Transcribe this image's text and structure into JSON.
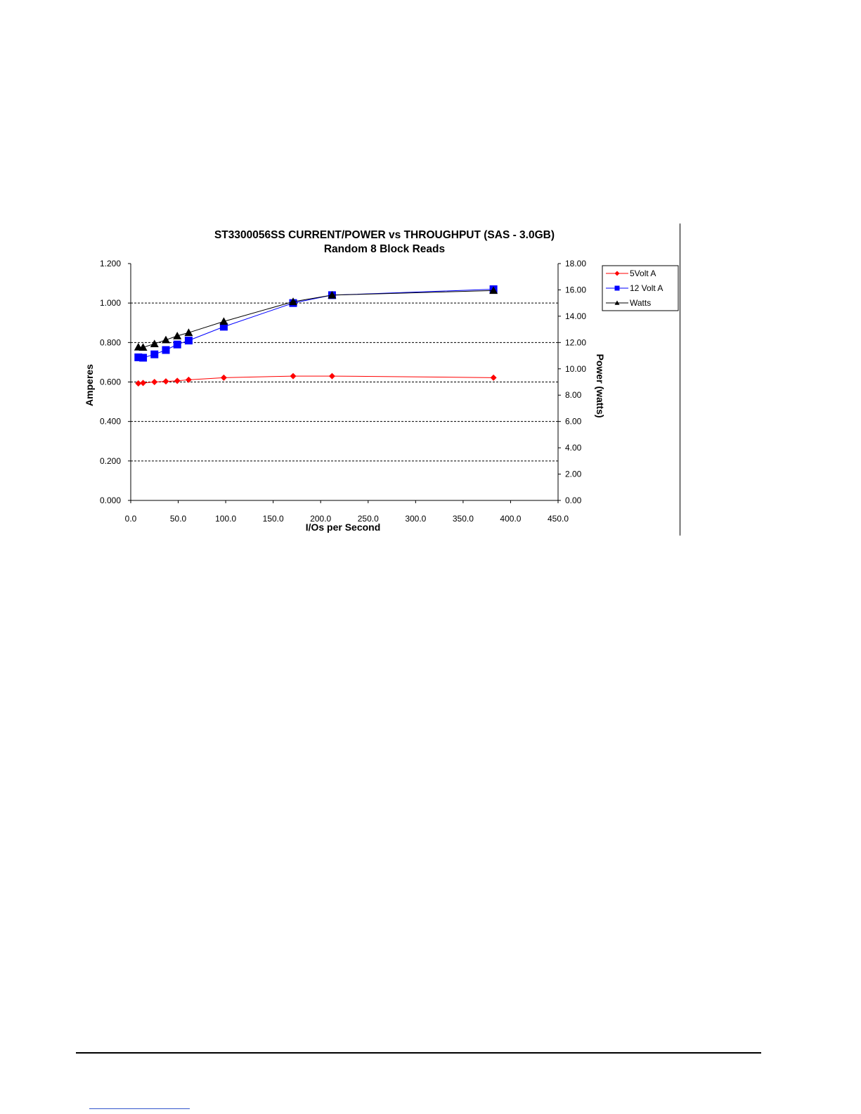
{
  "chart_data": {
    "type": "line",
    "title": "ST3300056SS CURRENT/POWER vs THROUGHPUT (SAS - 3.0GB)",
    "subtitle": "Random 8 Block Reads",
    "xlabel": "I/Os per Second",
    "ylabel": "Amperes",
    "y2label": "Power (watts)",
    "xlim": [
      0,
      450
    ],
    "ylim": [
      0,
      1.2
    ],
    "y2lim": [
      0,
      18
    ],
    "x_ticks": [
      "0.0",
      "50.0",
      "100.0",
      "150.0",
      "200.0",
      "250.0",
      "300.0",
      "350.0",
      "400.0",
      "450.0"
    ],
    "y_ticks": [
      "0.000",
      "0.200",
      "0.400",
      "0.600",
      "0.800",
      "1.000",
      "1.200"
    ],
    "y2_ticks": [
      "0.00",
      "2.00",
      "4.00",
      "6.00",
      "8.00",
      "10.00",
      "12.00",
      "14.00",
      "16.00",
      "18.00"
    ],
    "grid": "horizontal dashed",
    "legend_position": "right",
    "series": [
      {
        "name": "5Volt A",
        "axis": "left",
        "color": "#ff0000",
        "marker": "diamond",
        "points": [
          [
            8,
            0.593
          ],
          [
            13,
            0.595
          ],
          [
            25,
            0.6
          ],
          [
            37,
            0.603
          ],
          [
            49,
            0.606
          ],
          [
            61,
            0.611
          ],
          [
            98,
            0.622
          ],
          [
            171,
            0.63
          ],
          [
            212,
            0.63
          ],
          [
            382,
            0.622
          ]
        ]
      },
      {
        "name": "12 Volt A",
        "axis": "left",
        "color": "#0000ff",
        "marker": "square",
        "points": [
          [
            8,
            0.725
          ],
          [
            13,
            0.723
          ],
          [
            25,
            0.74
          ],
          [
            37,
            0.762
          ],
          [
            49,
            0.79
          ],
          [
            61,
            0.81
          ],
          [
            98,
            0.88
          ],
          [
            171,
            1.0
          ],
          [
            212,
            1.04
          ],
          [
            382,
            1.07
          ]
        ]
      },
      {
        "name": "Watts",
        "axis": "right",
        "color": "#000000",
        "marker": "triangle",
        "points": [
          [
            8,
            11.65
          ],
          [
            13,
            11.63
          ],
          [
            25,
            11.9
          ],
          [
            37,
            12.2
          ],
          [
            49,
            12.5
          ],
          [
            61,
            12.75
          ],
          [
            98,
            13.6
          ],
          [
            171,
            15.1
          ],
          [
            212,
            15.6
          ],
          [
            382,
            15.95
          ]
        ]
      }
    ]
  }
}
